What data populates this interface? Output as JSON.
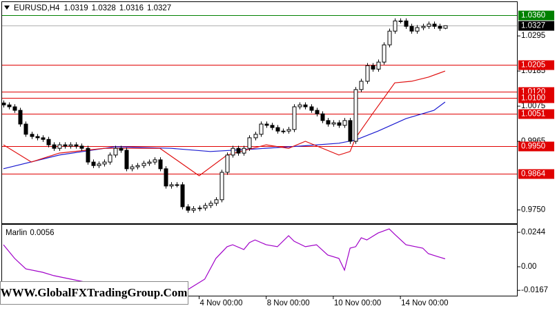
{
  "chart_data": [
    {
      "type": "candlestick",
      "title": "EURUSD,H4",
      "categories": [
        null,
        null,
        null,
        null,
        null,
        null,
        null,
        null,
        null,
        null,
        null,
        null,
        null,
        null,
        null,
        null,
        null,
        null,
        null,
        null,
        null,
        null,
        null,
        null,
        null,
        null,
        null,
        null,
        null,
        null,
        null,
        null,
        null,
        null,
        null,
        "4 Nov 00:00",
        null,
        null,
        null,
        null,
        null,
        null,
        null,
        null,
        null,
        null,
        null,
        "8 Nov 00:00",
        null,
        null,
        null,
        null,
        null,
        null,
        null,
        null,
        null,
        null,
        null,
        "10 Nov 00:00",
        null,
        null,
        null,
        null,
        null,
        null,
        null,
        null,
        null,
        null,
        null,
        "14 Nov 00:00",
        null,
        null,
        null,
        null,
        null,
        null,
        null,
        null
      ],
      "open": [
        1.0085,
        1.0079,
        1.0073,
        1.0062,
        1.0019,
        0.9987,
        0.998,
        0.9976,
        0.9971,
        0.9954,
        0.9943,
        0.9954,
        0.995,
        0.9954,
        0.995,
        0.9943,
        0.99,
        0.9889,
        0.9894,
        0.99,
        0.9922,
        0.9943,
        0.9937,
        0.9879,
        0.9885,
        0.9889,
        0.9896,
        0.99,
        0.9907,
        0.9879,
        0.9825,
        0.9829,
        0.9829,
        0.976,
        0.9749,
        0.9754,
        0.9756,
        0.9764,
        0.9771,
        0.9782,
        0.9868,
        0.9922,
        0.9943,
        0.9928,
        0.9943,
        0.9976,
        0.9987,
        1.0019,
        1.0015,
        1.0008,
        0.9997,
        0.9997,
        1.0002,
        1.0073,
        1.0079,
        1.0073,
        1.0062,
        1.0051,
        1.003,
        1.0019,
        1.0023,
        1.0015,
        1.003,
        0.9965,
        1.0127,
        1.0153,
        1.0202,
        1.0191,
        1.0213,
        1.0267,
        1.031,
        1.0342,
        1.0342,
        1.0325,
        1.031,
        1.0321,
        1.0325,
        1.0332,
        1.0325,
        1.0319
      ],
      "high": [
        1.0093,
        1.0087,
        1.0081,
        1.007,
        1.0027,
        0.9995,
        0.9988,
        0.9984,
        0.9979,
        0.9962,
        0.9962,
        0.9962,
        0.9962,
        0.9962,
        0.9958,
        0.9951,
        0.9908,
        0.9902,
        0.9908,
        0.993,
        0.9951,
        0.9951,
        0.9945,
        0.9893,
        0.9897,
        0.9904,
        0.9908,
        0.9915,
        0.9915,
        0.9887,
        0.9837,
        0.9837,
        0.9837,
        0.9768,
        0.9762,
        0.9764,
        0.9772,
        0.9779,
        0.979,
        0.9876,
        0.993,
        0.9951,
        0.9951,
        0.9951,
        0.9984,
        0.9995,
        1.0027,
        1.0027,
        1.0023,
        1.0016,
        1.0005,
        1.001,
        1.0081,
        1.0087,
        1.0087,
        1.0081,
        1.007,
        1.0059,
        1.0038,
        1.0031,
        1.0031,
        1.0038,
        1.0038,
        1.0135,
        1.0161,
        1.021,
        1.021,
        1.0221,
        1.0275,
        1.0318,
        1.035,
        1.035,
        1.035,
        1.0333,
        1.0329,
        1.0333,
        1.034,
        1.034,
        1.0333,
        1.0328
      ],
      "low": [
        1.0071,
        1.0065,
        1.0054,
        1.0011,
        0.9979,
        0.9972,
        0.9968,
        0.9963,
        0.9946,
        0.9935,
        0.9935,
        0.9942,
        0.9942,
        0.9942,
        0.9935,
        0.9892,
        0.9881,
        0.9881,
        0.9886,
        0.9892,
        0.9914,
        0.9929,
        0.9871,
        0.9871,
        0.9877,
        0.9881,
        0.9888,
        0.9892,
        0.9871,
        0.9817,
        0.9817,
        0.9821,
        0.9752,
        0.9741,
        0.9741,
        0.9746,
        0.9748,
        0.9756,
        0.9763,
        0.9774,
        0.986,
        0.9914,
        0.992,
        0.992,
        0.9935,
        0.9968,
        0.9979,
        1.0007,
        1.0,
        0.9989,
        0.9989,
        0.9989,
        0.9994,
        1.0065,
        1.0065,
        1.0054,
        1.0043,
        1.0022,
        1.0011,
        1.0011,
        1.0007,
        1.0007,
        0.9957,
        0.9957,
        1.0119,
        1.0145,
        1.0183,
        1.0183,
        1.0205,
        1.0259,
        1.0302,
        1.0334,
        1.0317,
        1.0302,
        1.0302,
        1.0313,
        1.0317,
        1.0317,
        1.0311,
        1.0316
      ],
      "close": [
        1.0079,
        1.0073,
        1.0062,
        1.0019,
        0.9987,
        0.998,
        0.9976,
        0.9971,
        0.9954,
        0.9943,
        0.9954,
        0.995,
        0.9954,
        0.995,
        0.9943,
        0.99,
        0.9889,
        0.9894,
        0.99,
        0.9922,
        0.9943,
        0.9937,
        0.9879,
        0.9885,
        0.9889,
        0.9896,
        0.99,
        0.9907,
        0.9879,
        0.9825,
        0.9829,
        0.9829,
        0.976,
        0.9749,
        0.9754,
        0.9756,
        0.9764,
        0.9771,
        0.9782,
        0.9868,
        0.9922,
        0.9943,
        0.9928,
        0.9943,
        0.9976,
        0.9987,
        1.0019,
        1.0015,
        1.0008,
        0.9997,
        0.9997,
        1.0002,
        1.0073,
        1.0079,
        1.0073,
        1.0062,
        1.0051,
        1.003,
        1.0019,
        1.0023,
        1.0015,
        1.003,
        0.9965,
        1.0127,
        1.0153,
        1.0202,
        1.0191,
        1.0213,
        1.0267,
        1.031,
        1.0342,
        1.0342,
        1.0325,
        1.031,
        1.0321,
        1.0325,
        1.0332,
        1.0325,
        1.0319,
        1.0327
      ],
      "series": [
        {
          "color": "#1a1ad0",
          "x": [
            0,
            10,
            20,
            30,
            37,
            45,
            53,
            60,
            63,
            67,
            72,
            77,
            79
          ],
          "values": [
            0.9879,
            0.9922,
            0.9948,
            0.9943,
            0.9933,
            0.9941,
            0.995,
            0.9959,
            0.9969,
            0.9997,
            1.0036,
            1.0062,
            1.0088
          ]
        },
        {
          "color": "#e01010",
          "x": [
            0,
            5,
            10,
            18,
            28,
            35,
            40,
            47,
            51,
            54,
            60,
            62,
            63,
            66,
            70,
            73,
            76,
            79
          ],
          "values": [
            0.9954,
            0.99,
            0.9928,
            0.9943,
            0.9943,
            0.9857,
            0.9922,
            0.9954,
            0.9943,
            0.9965,
            0.9922,
            0.9933,
            0.9976,
            1.0051,
            1.0148,
            1.0153,
            1.0166,
            1.0185
          ]
        }
      ],
      "levels": [
        {
          "value": 1.036,
          "label": "1.0360",
          "color": "#008000"
        },
        {
          "value": 1.0205,
          "color": "#e00000"
        },
        {
          "value": 1.012,
          "label": "1.0120",
          "color": "#e00000"
        },
        {
          "value": 1.01,
          "label": "1.0100",
          "color": "#e00000"
        },
        {
          "value": 1.0051,
          "color": "#e00000"
        },
        {
          "value": 0.995,
          "label": "0.9950",
          "color": "#e00000"
        },
        {
          "value": 0.9864,
          "color": "#e00000"
        }
      ],
      "ylim": [
        0.9706,
        1.0401
      ],
      "yticks": [
        1.0295,
        1.0185,
        1.0075,
        0.9965,
        {
          "value": 0.975,
          "label": "0.9750"
        }
      ],
      "watermark": "WWW.GlobalFXTradingGroup.Com"
    },
    {
      "type": "line",
      "title": "Marlin",
      "color": "#a000c8",
      "x": [
        0,
        2,
        4,
        7,
        9,
        15,
        25,
        33,
        36,
        38,
        40,
        41,
        43,
        44,
        45,
        47,
        49,
        51,
        52,
        54,
        56,
        58,
        60,
        61,
        62,
        63,
        64,
        65,
        67,
        69,
        70,
        72,
        75,
        76,
        78,
        79
      ],
      "values": [
        0.0156,
        0.0059,
        -0.0015,
        -0.0039,
        -0.0063,
        -0.0112,
        -0.0185,
        -0.0161,
        -0.0088,
        0.0059,
        0.0142,
        0.0156,
        0.0122,
        0.0171,
        0.019,
        0.0156,
        0.0142,
        0.022,
        0.0181,
        0.0142,
        0.0156,
        0.0083,
        0.0059,
        -0.0024,
        0.0132,
        0.0142,
        0.0205,
        0.019,
        0.0239,
        0.0268,
        0.0229,
        0.0156,
        0.0132,
        0.0093,
        0.0068,
        0.0056
      ],
      "ylim": [
        -0.021,
        0.0298
      ],
      "yticks": [
        0.0244,
        {
          "value": 0,
          "label": "0.00"
        },
        -0.0167
      ]
    }
  ]
}
